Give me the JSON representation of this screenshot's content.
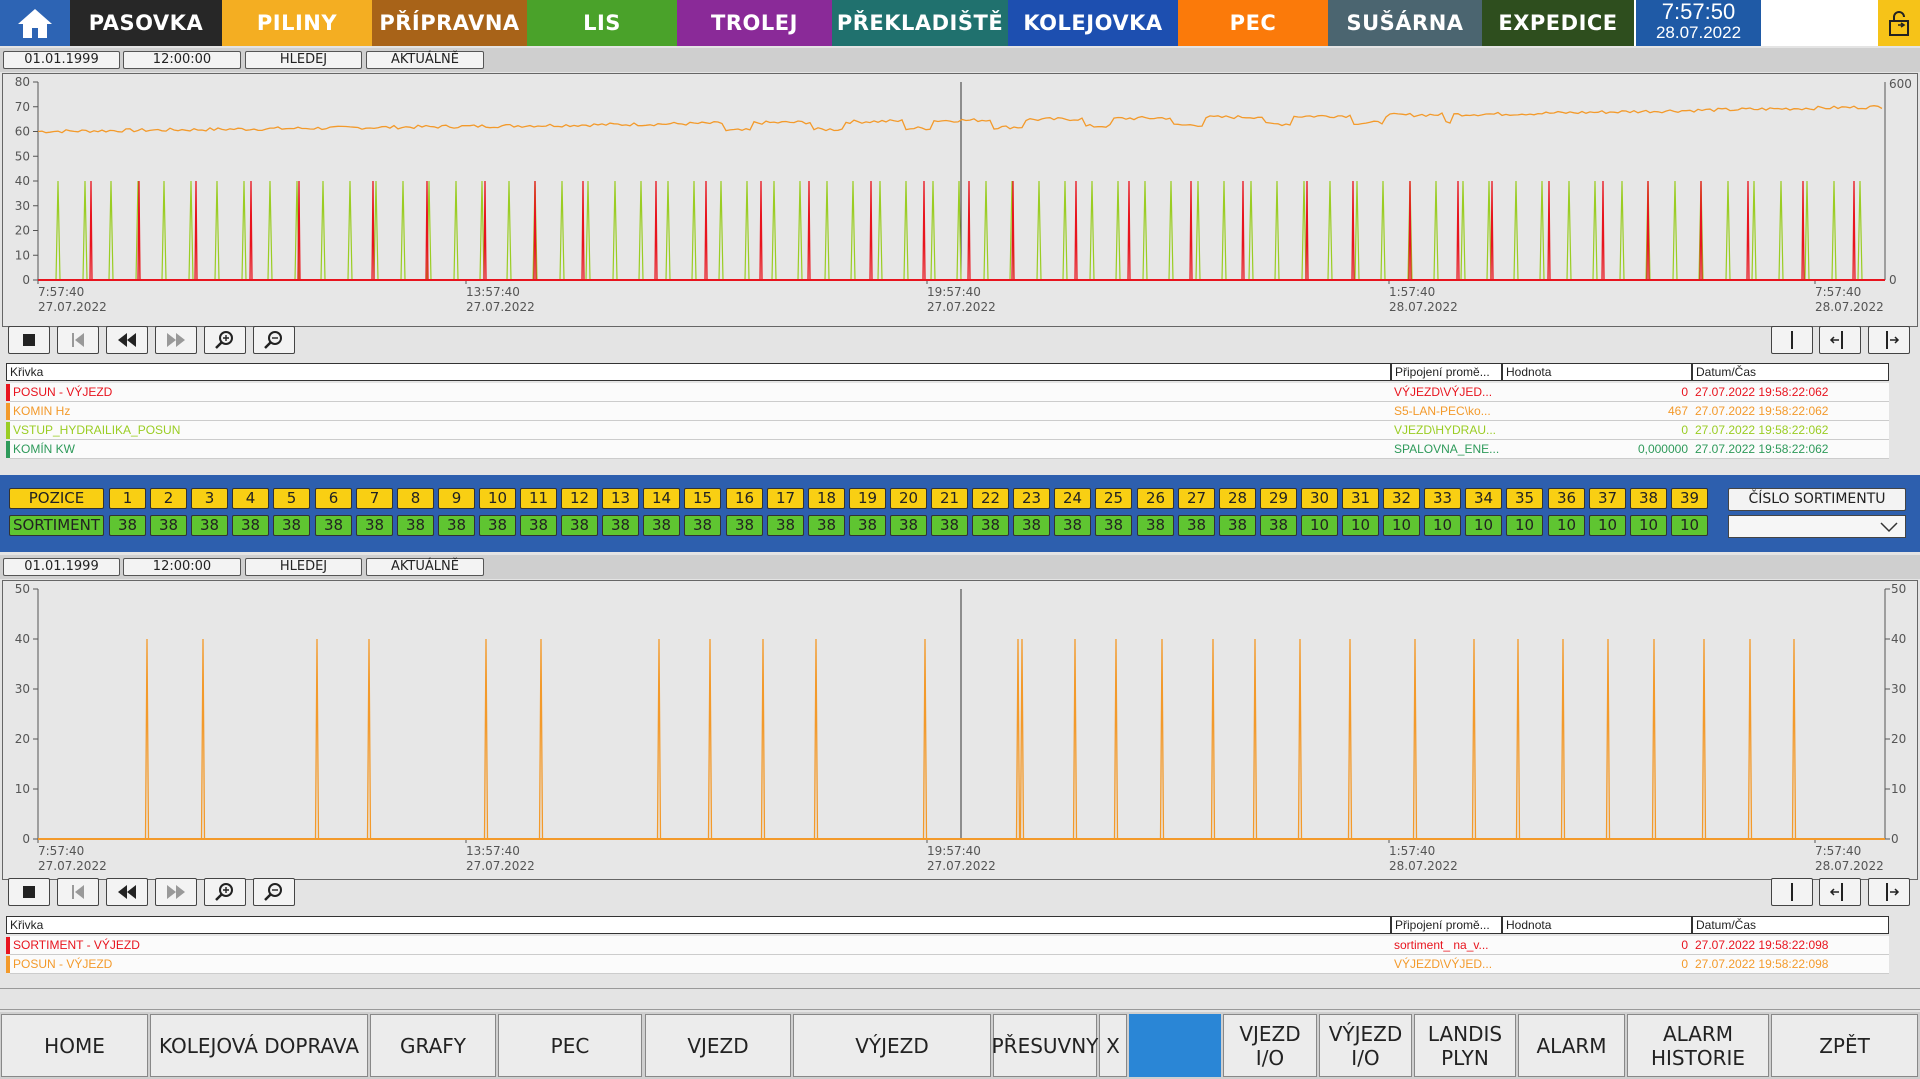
{
  "top_nav": {
    "tabs": [
      {
        "label": "PASOVKA",
        "color": "#272727"
      },
      {
        "label": "PILINY",
        "color": "#f4ae22"
      },
      {
        "label": "PŘÍPRAVNA",
        "color": "#a86318"
      },
      {
        "label": "LIS",
        "color": "#4aa22a"
      },
      {
        "label": "TROLEJ",
        "color": "#8a2a98"
      },
      {
        "label": "PŘEKLADIŠTĚ",
        "color": "#20716e"
      },
      {
        "label": "KOLEJOVKA",
        "color": "#1d4fb0"
      },
      {
        "label": "PEC",
        "color": "#fb7a0a"
      },
      {
        "label": "SUŠÁRNA",
        "color": "#4b6570"
      },
      {
        "label": "EXPEDICE",
        "color": "#2e4e1e"
      }
    ],
    "time": "7:57:50",
    "date": "28.07.2022"
  },
  "trend1": {
    "controls": {
      "date": "01.01.1999",
      "time": "12:00:00",
      "search": "HLEDEJ",
      "current": "AKTUÁLNĚ"
    },
    "left_axis": [
      "80",
      "70",
      "60",
      "50",
      "40",
      "30",
      "20",
      "10",
      "0"
    ],
    "right_axis": {
      "top": "600",
      "bottom": "0"
    },
    "time_axis": [
      {
        "t": "7:57:40",
        "d": "27.07.2022"
      },
      {
        "t": "13:57:40",
        "d": "27.07.2022"
      },
      {
        "t": "19:57:40",
        "d": "27.07.2022"
      },
      {
        "t": "1:57:40",
        "d": "28.07.2022"
      },
      {
        "t": "7:57:40",
        "d": "28.07.2022"
      }
    ],
    "table": {
      "headers": {
        "curve": "Křivka",
        "conn": "Připojení promě...",
        "value": "Hodnota",
        "datetime": "Datum/Čas"
      },
      "rows": [
        {
          "name": "POSUN - VÝJEZD",
          "conn": "VÝJEZD\\VÝJED...",
          "value": "0",
          "datetime": "27.07.2022 19:58:22:062",
          "color": "#e8141e"
        },
        {
          "name": "KOMIN Hz",
          "conn": "S5-LAN-PEC\\ko...",
          "value": "467",
          "datetime": "27.07.2022 19:58:22:062",
          "color": "#f39a2b"
        },
        {
          "name": "VSTUP_HYDRAILIKA_POSUN",
          "conn": "VJEZD\\HYDRAU...",
          "value": "0",
          "datetime": "27.07.2022 19:58:22:062",
          "color": "#9acd23"
        },
        {
          "name": "KOMÍN KW",
          "conn": "SPALOVNA_ENE...",
          "value": "0,000000",
          "datetime": "27.07.2022 19:58:22:062",
          "color": "#2e9a5a"
        }
      ]
    }
  },
  "positions": {
    "pozice_label": "POZICE",
    "sortiment_label": "SORTIMENT",
    "numbers": [
      "1",
      "2",
      "3",
      "4",
      "5",
      "6",
      "7",
      "8",
      "9",
      "10",
      "11",
      "12",
      "13",
      "14",
      "15",
      "16",
      "17",
      "18",
      "19",
      "20",
      "21",
      "22",
      "23",
      "24",
      "25",
      "26",
      "27",
      "28",
      "29",
      "30",
      "31",
      "32",
      "33",
      "34",
      "35",
      "36",
      "37",
      "38",
      "39"
    ],
    "sortiments": [
      "38",
      "38",
      "38",
      "38",
      "38",
      "38",
      "38",
      "38",
      "38",
      "38",
      "38",
      "38",
      "38",
      "38",
      "38",
      "38",
      "38",
      "38",
      "38",
      "38",
      "38",
      "38",
      "38",
      "38",
      "38",
      "38",
      "38",
      "38",
      "38",
      "10",
      "10",
      "10",
      "10",
      "10",
      "10",
      "10",
      "10",
      "10",
      "10"
    ],
    "cislo_sortimentu": "ČÍSLO SORTIMENTU"
  },
  "trend2": {
    "controls": {
      "date": "01.01.1999",
      "time": "12:00:00",
      "search": "HLEDEJ",
      "current": "AKTUÁLNĚ"
    },
    "left_axis": [
      "50",
      "40",
      "30",
      "20",
      "10",
      "0"
    ],
    "right_axis": [
      "50",
      "40",
      "30",
      "20",
      "10",
      "0"
    ],
    "time_axis": [
      {
        "t": "7:57:40",
        "d": "27.07.2022"
      },
      {
        "t": "13:57:40",
        "d": "27.07.2022"
      },
      {
        "t": "19:57:40",
        "d": "27.07.2022"
      },
      {
        "t": "1:57:40",
        "d": "28.07.2022"
      },
      {
        "t": "7:57:40",
        "d": "28.07.2022"
      }
    ],
    "table": {
      "headers": {
        "curve": "Křivka",
        "conn": "Připojení promě...",
        "value": "Hodnota",
        "datetime": "Datum/Čas"
      },
      "rows": [
        {
          "name": "SORTIMENT - VÝJEZD",
          "conn": "sortiment_ na_v...",
          "value": "0",
          "datetime": "27.07.2022 19:58:22:098",
          "color": "#e8141e"
        },
        {
          "name": "POSUN - VÝJEZD",
          "conn": "VÝJEZD\\VÝJED...",
          "value": "0",
          "datetime": "27.07.2022 19:58:22:098",
          "color": "#f39a2b"
        }
      ]
    }
  },
  "bottom_nav": [
    {
      "label": "HOME"
    },
    {
      "label": "KOLEJOVÁ DOPRAVA"
    },
    {
      "label": "GRAFY"
    },
    {
      "label": "PEC"
    },
    {
      "label": "VJEZD"
    },
    {
      "label": "VÝJEZD"
    },
    {
      "label": "PŘESUVNY"
    },
    {
      "label": "X"
    },
    {
      "label": ""
    },
    {
      "label": "VJEZD\nI/O"
    },
    {
      "label": "VÝJEZD\nI/O"
    },
    {
      "label": "LANDIS\nPLYN"
    },
    {
      "label": "ALARM"
    },
    {
      "label": "ALARM\nHISTORIE"
    },
    {
      "label": "ZPĚT"
    }
  ],
  "colors": {
    "accent_blue": "#2d5fae",
    "active_blue": "#2a86d6"
  }
}
